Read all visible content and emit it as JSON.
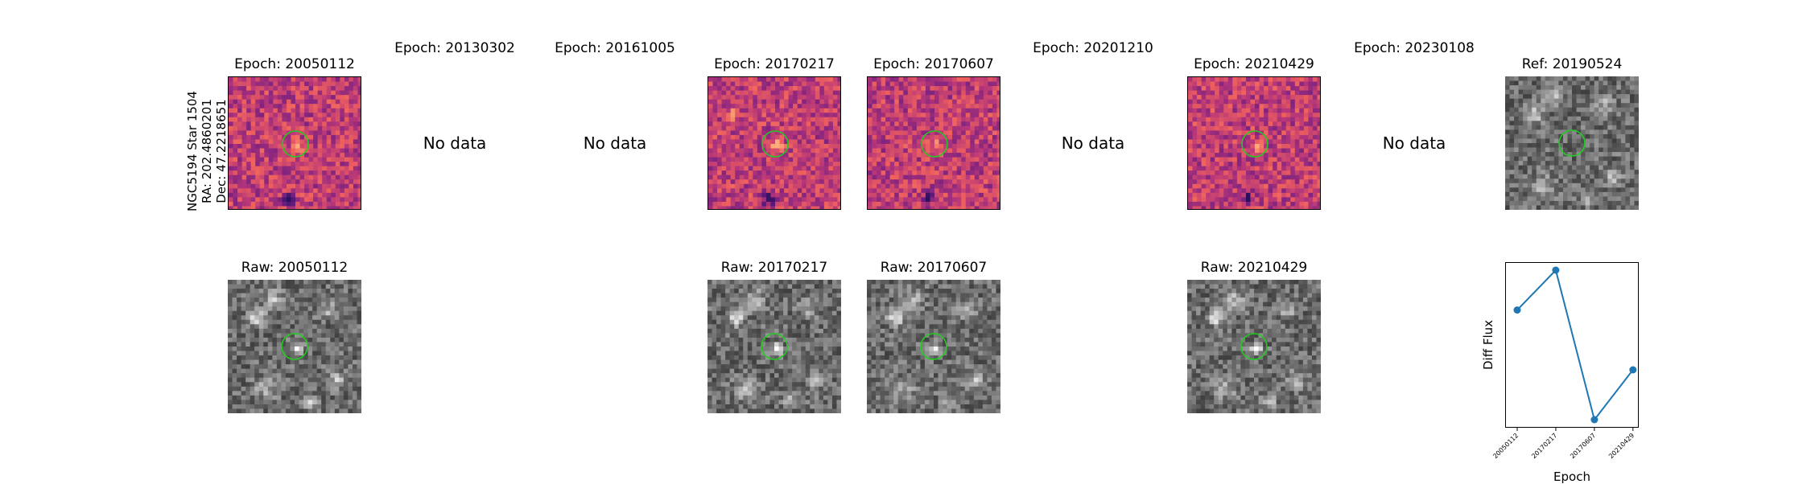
{
  "star_label": {
    "name": "NGC5194 Star 1504",
    "ra": "RA: 202.4860201",
    "dec": "Dec: 47.2218651"
  },
  "epochs": [
    {
      "title": "Epoch: 20050112",
      "has_data": true,
      "raw_title": "Raw: 20050112"
    },
    {
      "title": "Epoch: 20130302",
      "has_data": false,
      "no_data_text": "No data"
    },
    {
      "title": "Epoch: 20161005",
      "has_data": false,
      "no_data_text": "No data"
    },
    {
      "title": "Epoch: 20170217",
      "has_data": true,
      "raw_title": "Raw: 20170217"
    },
    {
      "title": "Epoch: 20170607",
      "has_data": true,
      "raw_title": "Raw: 20170607"
    },
    {
      "title": "Epoch: 20201210",
      "has_data": false,
      "no_data_text": "No data"
    },
    {
      "title": "Epoch: 20210429",
      "has_data": true,
      "raw_title": "Raw: 20210429"
    },
    {
      "title": "Epoch: 20230108",
      "has_data": false,
      "no_data_text": "No data"
    }
  ],
  "reference": {
    "title": "Ref: 20190524"
  },
  "colors": {
    "aperture": "#22cc22",
    "line": "#1f77b4",
    "diff_cmap": [
      "#2c0f5e",
      "#6a1c81",
      "#b63679",
      "#ee605e",
      "#fdae78"
    ]
  },
  "chart_data": {
    "type": "line",
    "x": [
      "20050112",
      "20170217",
      "20170607",
      "20210429"
    ],
    "y": [
      0.72,
      1.0,
      -0.05,
      0.3
    ],
    "xlabel": "Epoch",
    "ylabel": "Diff Flux",
    "grid": false
  }
}
